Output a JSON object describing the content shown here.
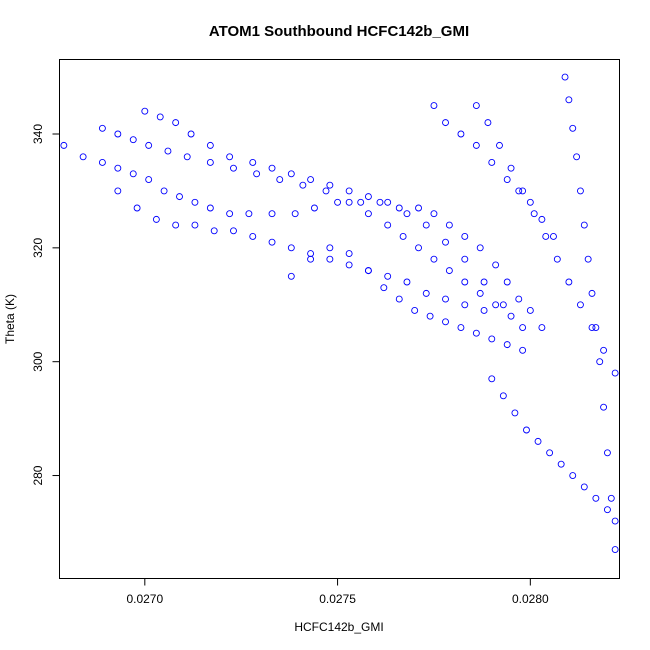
{
  "chart_data": {
    "type": "scatter",
    "title": "ATOM1 Southbound HCFC142b_GMI",
    "xlabel": "HCFC142b_GMI",
    "ylabel": "Theta (K)",
    "xlim": [
      0.02678,
      0.02823
    ],
    "ylim": [
      262,
      353
    ],
    "xticks": [
      0.027,
      0.0275,
      0.028
    ],
    "xtick_labels": [
      "0.0270",
      "0.0275",
      "0.0280"
    ],
    "yticks": [
      280,
      300,
      320,
      340
    ],
    "ytick_labels": [
      "280",
      "300",
      "320",
      "340"
    ],
    "grid": false,
    "legend": "none",
    "marker": "open-circle",
    "color": "#0000ff",
    "series": [
      {
        "x": [
          0.02679,
          0.02684,
          0.02689,
          0.02693,
          0.02697,
          0.02701,
          0.02705,
          0.02709,
          0.02713,
          0.02717,
          0.02722,
          0.02727,
          0.02733,
          0.02739,
          0.02744,
          0.0275,
          0.02756,
          0.02761,
          0.02766,
          0.02771,
          0.02775,
          0.02779,
          0.02783,
          0.02787,
          0.02791,
          0.02794,
          0.02797,
          0.028,
          0.02803
        ],
        "y": [
          338,
          336,
          335,
          334,
          333,
          332,
          330,
          329,
          328,
          327,
          326,
          326,
          326,
          326,
          327,
          328,
          328,
          328,
          327,
          327,
          326,
          324,
          322,
          320,
          317,
          314,
          311,
          309,
          306
        ]
      },
      {
        "x": [
          0.02689,
          0.02693,
          0.02697,
          0.02701,
          0.02706,
          0.02711,
          0.02717,
          0.02723,
          0.02729,
          0.02735,
          0.02741,
          0.02747,
          0.02753,
          0.02758,
          0.02763,
          0.02767,
          0.02771,
          0.02775,
          0.02779,
          0.02783,
          0.02787,
          0.02791,
          0.02795
        ],
        "y": [
          341,
          340,
          339,
          338,
          337,
          336,
          335,
          334,
          333,
          332,
          331,
          330,
          328,
          326,
          324,
          322,
          320,
          318,
          316,
          314,
          312,
          310,
          308
        ]
      },
      {
        "x": [
          0.027,
          0.02704,
          0.02708,
          0.02712,
          0.02717,
          0.02722,
          0.02728,
          0.02733,
          0.02738,
          0.02743,
          0.02748,
          0.02753,
          0.02758,
          0.02763,
          0.02768,
          0.02773,
          0.02778,
          0.02783,
          0.02788,
          0.02793,
          0.02798
        ],
        "y": [
          344,
          343,
          342,
          340,
          338,
          336,
          335,
          334,
          333,
          332,
          331,
          330,
          329,
          328,
          326,
          324,
          321,
          318,
          314,
          310,
          306
        ]
      },
      {
        "x": [
          0.02693,
          0.02698,
          0.02703,
          0.02708,
          0.02713,
          0.02718,
          0.02723,
          0.02728,
          0.02733,
          0.02738,
          0.02743,
          0.02748,
          0.02753,
          0.02758,
          0.02763,
          0.02768,
          0.02773,
          0.02778,
          0.02783,
          0.02788
        ],
        "y": [
          330,
          327,
          325,
          324,
          324,
          323,
          323,
          322,
          321,
          320,
          319,
          318,
          317,
          316,
          315,
          314,
          312,
          311,
          310,
          309
        ]
      },
      {
        "x": [
          0.02738,
          0.02743,
          0.02748,
          0.02753,
          0.02758,
          0.02762,
          0.02766,
          0.0277,
          0.02774,
          0.02778,
          0.02782,
          0.02786,
          0.0279,
          0.02794,
          0.02798
        ],
        "y": [
          315,
          318,
          320,
          319,
          316,
          313,
          311,
          309,
          308,
          307,
          306,
          305,
          304,
          303,
          302
        ]
      },
      {
        "x": [
          0.02775,
          0.02778,
          0.02782,
          0.02786,
          0.0279,
          0.02794,
          0.02797,
          0.028,
          0.02803,
          0.02806
        ],
        "y": [
          345,
          342,
          340,
          338,
          335,
          332,
          330,
          328,
          325,
          322
        ]
      },
      {
        "x": [
          0.02786,
          0.02789,
          0.02792,
          0.02795,
          0.02798,
          0.02801,
          0.02804,
          0.02807,
          0.0281,
          0.02813,
          0.02816,
          0.02819,
          0.02822
        ],
        "y": [
          345,
          342,
          338,
          334,
          330,
          326,
          322,
          318,
          314,
          310,
          306,
          302,
          298
        ]
      },
      {
        "x": [
          0.0279,
          0.02793,
          0.02796,
          0.02799,
          0.02802,
          0.02805,
          0.02808,
          0.02811,
          0.02814,
          0.02817,
          0.0282,
          0.02822
        ],
        "y": [
          297,
          294,
          291,
          288,
          286,
          284,
          282,
          280,
          278,
          276,
          274,
          272
        ]
      },
      {
        "x": [
          0.02809,
          0.0281,
          0.02811,
          0.02812,
          0.02813,
          0.02814,
          0.02815,
          0.02816,
          0.02817,
          0.02818,
          0.02819,
          0.0282,
          0.02821,
          0.02822
        ],
        "y": [
          350,
          346,
          341,
          336,
          330,
          324,
          318,
          312,
          306,
          300,
          292,
          284,
          276,
          267
        ]
      }
    ]
  }
}
